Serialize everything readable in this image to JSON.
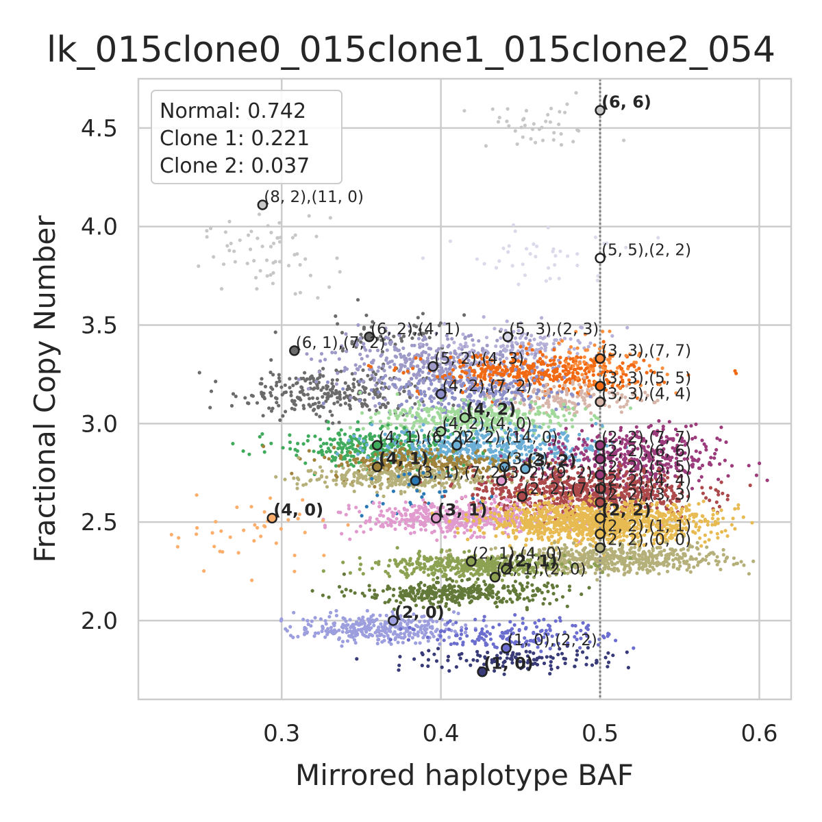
{
  "chart_data": {
    "type": "scatter",
    "title": "lk_015clone0_015clone1_015clone2_054",
    "xlabel": "Mirrored haplotype BAF",
    "ylabel": "Fractional Copy Number",
    "xlim": [
      0.21,
      0.62
    ],
    "ylim": [
      1.6,
      4.75
    ],
    "xticks": [
      0.3,
      0.4,
      0.5,
      0.6
    ],
    "yticks": [
      2.0,
      2.5,
      3.0,
      3.5,
      4.0,
      4.5
    ],
    "xtick_labels": [
      "0.3",
      "0.4",
      "0.5",
      "0.6"
    ],
    "ytick_labels": [
      "2.0",
      "2.5",
      "3.0",
      "3.5",
      "4.0",
      "4.5"
    ],
    "grid": true,
    "reference_line_x": 0.5,
    "legend": {
      "placement": "top-left",
      "entries": [
        "Normal: 0.742",
        "Clone 1: 0.221",
        "Clone 2: 0.037"
      ]
    },
    "clusters": [
      {
        "color": "#c7c7c7",
        "x": 0.46,
        "y": 4.5,
        "sx": 0.025,
        "sy": 0.06,
        "n": 40
      },
      {
        "color": "#c7c7c7",
        "x": 0.29,
        "y": 3.85,
        "sx": 0.02,
        "sy": 0.1,
        "n": 60
      },
      {
        "color": "#dadaeb",
        "x": 0.47,
        "y": 3.85,
        "sx": 0.025,
        "sy": 0.08,
        "n": 40
      },
      {
        "color": "#6b6b6b",
        "x": 0.33,
        "y": 3.16,
        "sx": 0.03,
        "sy": 0.06,
        "n": 280
      },
      {
        "color": "#6b6b6b",
        "x": 0.36,
        "y": 3.45,
        "sx": 0.03,
        "sy": 0.06,
        "n": 50
      },
      {
        "color": "#9e9ac8",
        "x": 0.4,
        "y": 3.3,
        "sx": 0.035,
        "sy": 0.07,
        "n": 420
      },
      {
        "color": "#b6b1d9",
        "x": 0.455,
        "y": 3.4,
        "sx": 0.025,
        "sy": 0.05,
        "n": 120
      },
      {
        "color": "#f16913",
        "x": 0.46,
        "y": 3.25,
        "sx": 0.035,
        "sy": 0.05,
        "n": 420
      },
      {
        "color": "#fd8d3c",
        "x": 0.5,
        "y": 3.3,
        "sx": 0.02,
        "sy": 0.07,
        "n": 80
      },
      {
        "color": "#d7b5a8",
        "x": 0.48,
        "y": 3.13,
        "sx": 0.025,
        "sy": 0.04,
        "n": 150
      },
      {
        "color": "#8c8fc8",
        "x": 0.42,
        "y": 3.15,
        "sx": 0.03,
        "sy": 0.05,
        "n": 250
      },
      {
        "color": "#a1d99b",
        "x": 0.42,
        "y": 3.03,
        "sx": 0.03,
        "sy": 0.04,
        "n": 350
      },
      {
        "color": "#41ab5d",
        "x": 0.36,
        "y": 2.88,
        "sx": 0.03,
        "sy": 0.05,
        "n": 320
      },
      {
        "color": "#6baed6",
        "x": 0.43,
        "y": 2.88,
        "sx": 0.035,
        "sy": 0.05,
        "n": 420
      },
      {
        "color": "#9b3b7c",
        "x": 0.52,
        "y": 2.82,
        "sx": 0.028,
        "sy": 0.08,
        "n": 420
      },
      {
        "color": "#a0823a",
        "x": 0.39,
        "y": 2.8,
        "sx": 0.03,
        "sy": 0.04,
        "n": 320
      },
      {
        "color": "#b5b07a",
        "x": 0.37,
        "y": 2.72,
        "sx": 0.03,
        "sy": 0.03,
        "n": 280
      },
      {
        "color": "#ad494a",
        "x": 0.49,
        "y": 2.65,
        "sx": 0.035,
        "sy": 0.06,
        "n": 750
      },
      {
        "color": "#2a78b4",
        "x": 0.38,
        "y": 2.65,
        "sx": 0.02,
        "sy": 0.05,
        "n": 30
      },
      {
        "color": "#e09acd",
        "x": 0.41,
        "y": 2.52,
        "sx": 0.03,
        "sy": 0.04,
        "n": 480
      },
      {
        "color": "#e7ba52",
        "x": 0.5,
        "y": 2.5,
        "sx": 0.035,
        "sy": 0.05,
        "n": 1100
      },
      {
        "color": "#fdae6b",
        "x": 0.28,
        "y": 2.45,
        "sx": 0.03,
        "sy": 0.1,
        "n": 40
      },
      {
        "color": "#b5b07a",
        "x": 0.51,
        "y": 2.31,
        "sx": 0.035,
        "sy": 0.035,
        "n": 550
      },
      {
        "color": "#8ca252",
        "x": 0.42,
        "y": 2.28,
        "sx": 0.03,
        "sy": 0.03,
        "n": 420
      },
      {
        "color": "#637939",
        "x": 0.41,
        "y": 2.14,
        "sx": 0.03,
        "sy": 0.03,
        "n": 360
      },
      {
        "color": "#9c9ede",
        "x": 0.36,
        "y": 1.96,
        "sx": 0.025,
        "sy": 0.035,
        "n": 320
      },
      {
        "color": "#6b6ecf",
        "x": 0.45,
        "y": 1.93,
        "sx": 0.03,
        "sy": 0.04,
        "n": 160
      },
      {
        "color": "#393b79",
        "x": 0.45,
        "y": 1.8,
        "sx": 0.035,
        "sy": 0.03,
        "n": 120
      }
    ],
    "annotations": [
      {
        "x": 0.5,
        "y": 4.59,
        "label": "(6, 6)",
        "bold": true,
        "fill": "#c7c7c7"
      },
      {
        "x": 0.288,
        "y": 4.11,
        "label": "(8, 2),(11, 0)",
        "bold": false,
        "fill": "#c7c7c7"
      },
      {
        "x": 0.5,
        "y": 3.84,
        "label": "(5, 5),(2, 2)",
        "bold": false,
        "fill": "#ffffff"
      },
      {
        "x": 0.355,
        "y": 3.44,
        "label": "(6, 2),(4, 1)",
        "bold": false,
        "fill": "#6b6b6b"
      },
      {
        "x": 0.442,
        "y": 3.44,
        "label": "(5, 3),(2, 3)",
        "bold": false,
        "fill": "#dadaeb"
      },
      {
        "x": 0.308,
        "y": 3.37,
        "label": "(6, 1),(7, 2)",
        "bold": false,
        "fill": "#6b6b6b"
      },
      {
        "x": 0.5,
        "y": 3.33,
        "label": "(3, 3),(7, 7)",
        "bold": false,
        "fill": "#fd8d3c"
      },
      {
        "x": 0.395,
        "y": 3.29,
        "label": "(5, 2),(4, 3)",
        "bold": false,
        "fill": "#9e9ac8"
      },
      {
        "x": 0.5,
        "y": 3.19,
        "label": "(3, 3),(5, 5)",
        "bold": false,
        "fill": "#f16913"
      },
      {
        "x": 0.4,
        "y": 3.15,
        "label": "(4, 2),(7, 2)",
        "bold": false,
        "fill": "#8c8fc8"
      },
      {
        "x": 0.5,
        "y": 3.11,
        "label": "(3, 3),(4, 4)",
        "bold": false,
        "fill": "#d7b5a8"
      },
      {
        "x": 0.415,
        "y": 3.03,
        "label": "(4, 2)",
        "bold": true,
        "fill": "#a1d99b"
      },
      {
        "x": 0.4,
        "y": 2.96,
        "label": "(4, 2),(4, 0)",
        "bold": false,
        "fill": "#a1d99b"
      },
      {
        "x": 0.36,
        "y": 2.89,
        "label": "(4, 1),(6, 2)",
        "bold": false,
        "fill": "#41ab5d"
      },
      {
        "x": 0.41,
        "y": 2.89,
        "label": "(2, 2),(14, 0)",
        "bold": false,
        "fill": "#6baed6"
      },
      {
        "x": 0.5,
        "y": 2.89,
        "label": "(2, 2),(7, 7)",
        "bold": false,
        "fill": "#9b3b7c"
      },
      {
        "x": 0.5,
        "y": 2.82,
        "label": "(2, 2),(6, 6)",
        "bold": false,
        "fill": "#9b3b7c"
      },
      {
        "x": 0.36,
        "y": 2.78,
        "label": "(4, 1)",
        "bold": true,
        "fill": "#a0823a"
      },
      {
        "x": 0.44,
        "y": 2.78,
        "label": "(3, 2)",
        "bold": false,
        "fill": "#6baed6"
      },
      {
        "x": 0.453,
        "y": 2.77,
        "label": "(3, 2)",
        "bold": true,
        "fill": "#6baed6"
      },
      {
        "x": 0.5,
        "y": 2.74,
        "label": "(2, 2),(5, 5)",
        "bold": false,
        "fill": "#9b3b7c"
      },
      {
        "x": 0.384,
        "y": 2.71,
        "label": "(3, 1),(7, 2)",
        "bold": false,
        "fill": "#2a78b4"
      },
      {
        "x": 0.438,
        "y": 2.71,
        "label": "(3, 2),(9, 2)",
        "bold": false,
        "fill": "#e09acd"
      },
      {
        "x": 0.5,
        "y": 2.67,
        "label": "(2, 2),(4, 4)",
        "bold": false,
        "fill": "#ad494a"
      },
      {
        "x": 0.451,
        "y": 2.63,
        "label": "(2, 2),(7, 0)",
        "bold": false,
        "fill": "#ad494a"
      },
      {
        "x": 0.5,
        "y": 2.6,
        "label": "(2, 2),(3, 3)",
        "bold": false,
        "fill": "#ad494a"
      },
      {
        "x": 0.294,
        "y": 2.52,
        "label": "(4, 0)",
        "bold": true,
        "fill": "#fdae6b"
      },
      {
        "x": 0.397,
        "y": 2.52,
        "label": "(3, 1)",
        "bold": true,
        "fill": "#e09acd"
      },
      {
        "x": 0.5,
        "y": 2.52,
        "label": "(2, 2)",
        "bold": true,
        "fill": "#e7ba52"
      },
      {
        "x": 0.5,
        "y": 2.44,
        "label": "(2, 2),(1, 1)",
        "bold": false,
        "fill": "#e7ba52"
      },
      {
        "x": 0.5,
        "y": 2.37,
        "label": "(2, 2),(0, 0)",
        "bold": false,
        "fill": "#b5b07a"
      },
      {
        "x": 0.419,
        "y": 2.3,
        "label": "(2, 1),(4, 0)",
        "bold": false,
        "fill": "#8ca252"
      },
      {
        "x": 0.441,
        "y": 2.26,
        "label": "(2, 1)",
        "bold": true,
        "fill": "#8ca252"
      },
      {
        "x": 0.434,
        "y": 2.22,
        "label": "(2, 1),(2, 0)",
        "bold": false,
        "fill": "#8ca252"
      },
      {
        "x": 0.37,
        "y": 2.0,
        "label": "(2, 0)",
        "bold": true,
        "fill": "#9c9ede"
      },
      {
        "x": 0.441,
        "y": 1.86,
        "label": "(1, 0),(2, 2)",
        "bold": false,
        "fill": "#6b6ecf"
      },
      {
        "x": 0.426,
        "y": 1.74,
        "label": "(1, 0)",
        "bold": true,
        "fill": "#393b79"
      }
    ]
  }
}
